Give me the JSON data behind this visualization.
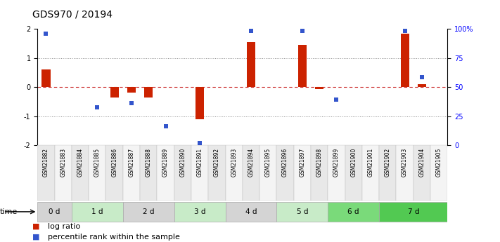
{
  "title": "GDS970 / 20194",
  "samples": [
    "GSM21882",
    "GSM21883",
    "GSM21884",
    "GSM21885",
    "GSM21886",
    "GSM21887",
    "GSM21888",
    "GSM21889",
    "GSM21890",
    "GSM21891",
    "GSM21892",
    "GSM21893",
    "GSM21894",
    "GSM21895",
    "GSM21896",
    "GSM21897",
    "GSM21898",
    "GSM21899",
    "GSM21900",
    "GSM21901",
    "GSM21902",
    "GSM21903",
    "GSM21904",
    "GSM21905"
  ],
  "log_ratio": [
    0.6,
    0.0,
    0.0,
    0.0,
    -0.35,
    -0.2,
    -0.35,
    0.0,
    0.0,
    -1.1,
    0.0,
    0.0,
    1.55,
    0.0,
    0.0,
    1.45,
    -0.07,
    0.0,
    0.0,
    0.0,
    0.0,
    1.85,
    0.1,
    0.0
  ],
  "pct_rank": [
    1.85,
    null,
    null,
    -0.7,
    null,
    -0.55,
    null,
    -1.35,
    null,
    -1.93,
    null,
    null,
    1.93,
    null,
    null,
    1.93,
    null,
    -0.42,
    null,
    null,
    null,
    1.93,
    0.35,
    null
  ],
  "time_groups": [
    {
      "label": "0 d",
      "start": 0,
      "end": 2,
      "color": "#d4d4d4"
    },
    {
      "label": "1 d",
      "start": 2,
      "end": 5,
      "color": "#c8ebc8"
    },
    {
      "label": "2 d",
      "start": 5,
      "end": 8,
      "color": "#d4d4d4"
    },
    {
      "label": "3 d",
      "start": 8,
      "end": 11,
      "color": "#c8ebc8"
    },
    {
      "label": "4 d",
      "start": 11,
      "end": 14,
      "color": "#d4d4d4"
    },
    {
      "label": "5 d",
      "start": 14,
      "end": 17,
      "color": "#c8ebc8"
    },
    {
      "label": "6 d",
      "start": 17,
      "end": 20,
      "color": "#7ada7a"
    },
    {
      "label": "7 d",
      "start": 20,
      "end": 24,
      "color": "#52c952"
    }
  ],
  "ylim": [
    -2,
    2
  ],
  "left_yticks": [
    -2,
    -1,
    0,
    1,
    2
  ],
  "left_ylabels": [
    "-2",
    "-1",
    "0",
    "1",
    "2"
  ],
  "right_yticks_pct": [
    0,
    25,
    50,
    75,
    100
  ],
  "right_ylabels": [
    "0",
    "25",
    "50",
    "75",
    "100%"
  ],
  "bar_color": "#cc2200",
  "dot_color": "#3355cc",
  "zero_line_color": "#cc3333",
  "dotted_line_color": "#888888",
  "bg_color": "#ffffff",
  "title_fontsize": 10,
  "tick_fontsize": 7,
  "legend_fontsize": 8
}
